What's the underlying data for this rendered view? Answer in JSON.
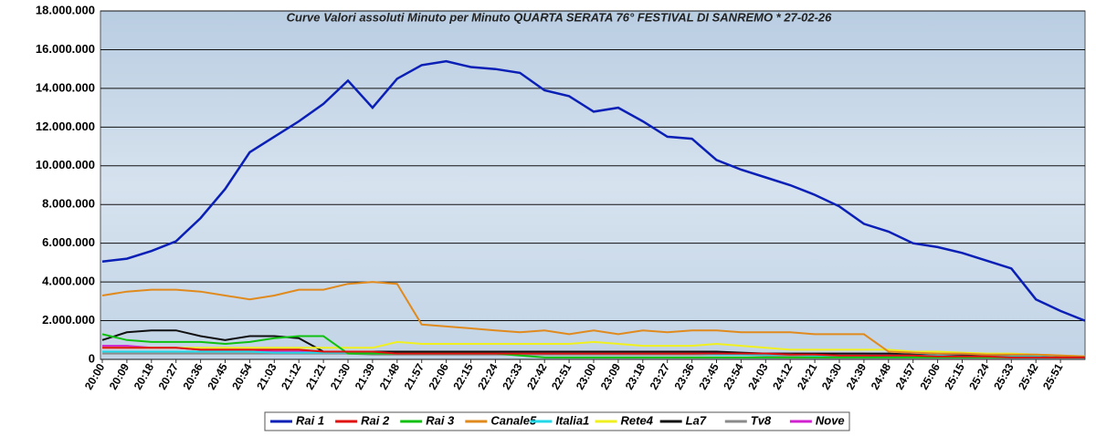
{
  "chart_data": {
    "type": "line",
    "title": "Curve Valori assoluti Minuto per Minuto QUARTA SERATA 76° FESTIVAL DI SANREMO *  27-02-26",
    "categories": [
      "20:00",
      "20:09",
      "20:18",
      "20:27",
      "20:36",
      "20:45",
      "20:54",
      "21:03",
      "21:12",
      "21:21",
      "21:30",
      "21:39",
      "21:48",
      "21:57",
      "22:06",
      "22:15",
      "22:24",
      "22:33",
      "22:42",
      "22:51",
      "23:00",
      "23:09",
      "23:18",
      "23:27",
      "23:36",
      "23:45",
      "23:54",
      "24:03",
      "24:12",
      "24:21",
      "24:30",
      "24:39",
      "24:48",
      "24:57",
      "25:06",
      "25:15",
      "25:24",
      "25:33",
      "25:42",
      "25:51",
      null
    ],
    "ylim": [
      0,
      18000000
    ],
    "yticks": [
      0,
      {
        "value": 2000000,
        "label": "2.000.000"
      },
      {
        "value": 4000000,
        "label": "4.000.000"
      },
      {
        "value": 6000000,
        "label": "6.000.000"
      },
      {
        "value": 8000000,
        "label": "8.000.000"
      },
      {
        "value": 10000000,
        "label": "10.000.000"
      },
      {
        "value": 12000000,
        "label": "12.000.000"
      },
      {
        "value": 14000000,
        "label": "14.000.000"
      },
      {
        "value": 16000000,
        "label": "16.000.000"
      },
      {
        "value": 18000000,
        "label": "18.000.000"
      }
    ],
    "grid": true,
    "legend": "bottom",
    "series": [
      {
        "name": "Rai 1",
        "color": "#0a1fb5",
        "values": [
          5050000,
          5200000,
          5600000,
          6100000,
          7300000,
          8800000,
          10700000,
          11500000,
          12300000,
          13200000,
          14400000,
          13000000,
          14500000,
          15200000,
          15400000,
          15100000,
          15000000,
          14800000,
          13900000,
          13600000,
          12800000,
          13000000,
          12300000,
          11500000,
          11400000,
          10300000,
          9800000,
          9400000,
          9000000,
          8500000,
          7900000,
          7000000,
          6600000,
          6000000,
          5800000,
          5500000,
          5100000,
          4700000,
          3100000,
          2500000,
          2000000
        ]
      },
      {
        "name": "Rai 2",
        "color": "#e01010",
        "values": [
          600000,
          600000,
          600000,
          600000,
          500000,
          500000,
          500000,
          500000,
          500000,
          400000,
          400000,
          400000,
          300000,
          300000,
          300000,
          300000,
          300000,
          300000,
          300000,
          300000,
          300000,
          300000,
          300000,
          300000,
          300000,
          300000,
          300000,
          300000,
          250000,
          250000,
          200000,
          200000,
          200000,
          200000,
          150000,
          150000,
          150000,
          100000,
          100000,
          100000,
          100000
        ]
      },
      {
        "name": "Rai 3",
        "color": "#10c010",
        "values": [
          1300000,
          1000000,
          900000,
          900000,
          900000,
          800000,
          900000,
          1100000,
          1200000,
          1200000,
          300000,
          300000,
          300000,
          300000,
          300000,
          300000,
          300000,
          200000,
          100000,
          100000,
          100000,
          100000,
          100000,
          100000,
          100000,
          100000,
          100000,
          100000,
          100000,
          100000,
          100000,
          100000,
          100000,
          100000,
          100000,
          100000,
          100000,
          100000,
          100000,
          100000,
          100000
        ]
      },
      {
        "name": "Canale5",
        "color": "#e08a1e",
        "values": [
          3300000,
          3500000,
          3600000,
          3600000,
          3500000,
          3300000,
          3100000,
          3300000,
          3600000,
          3600000,
          3900000,
          4000000,
          3900000,
          1800000,
          1700000,
          1600000,
          1500000,
          1400000,
          1500000,
          1300000,
          1500000,
          1300000,
          1500000,
          1400000,
          1500000,
          1500000,
          1400000,
          1400000,
          1400000,
          1300000,
          1300000,
          1300000,
          400000,
          350000,
          300000,
          300000,
          250000,
          250000,
          250000,
          200000,
          150000
        ]
      },
      {
        "name": "Italia1",
        "color": "#20d8e8",
        "values": [
          400000,
          400000,
          400000,
          400000,
          400000,
          400000,
          400000,
          350000,
          350000,
          350000,
          350000,
          350000,
          300000,
          300000,
          300000,
          300000,
          300000,
          300000,
          300000,
          300000,
          300000,
          300000,
          300000,
          300000,
          300000,
          250000,
          250000,
          250000,
          250000,
          200000,
          200000,
          200000,
          200000,
          200000,
          200000,
          150000,
          150000,
          150000,
          150000,
          100000,
          100000
        ]
      },
      {
        "name": "Rete4",
        "color": "#f0f020",
        "values": [
          600000,
          600000,
          600000,
          600000,
          600000,
          600000,
          600000,
          600000,
          600000,
          600000,
          600000,
          600000,
          900000,
          800000,
          800000,
          800000,
          800000,
          800000,
          800000,
          800000,
          900000,
          800000,
          700000,
          700000,
          700000,
          800000,
          700000,
          600000,
          500000,
          500000,
          500000,
          500000,
          500000,
          400000,
          400000,
          350000,
          300000,
          300000,
          250000,
          200000,
          150000
        ]
      },
      {
        "name": "La7",
        "color": "#101010",
        "values": [
          1000000,
          1400000,
          1500000,
          1500000,
          1200000,
          1000000,
          1200000,
          1200000,
          1100000,
          400000,
          400000,
          400000,
          400000,
          400000,
          400000,
          400000,
          400000,
          400000,
          400000,
          400000,
          400000,
          400000,
          400000,
          400000,
          400000,
          400000,
          350000,
          300000,
          300000,
          300000,
          300000,
          300000,
          300000,
          250000,
          200000,
          200000,
          200000,
          150000,
          150000,
          100000,
          100000
        ]
      },
      {
        "name": "Tv8",
        "color": "#8a8a8a",
        "values": [
          300000,
          300000,
          300000,
          300000,
          300000,
          300000,
          300000,
          300000,
          300000,
          300000,
          300000,
          250000,
          250000,
          250000,
          250000,
          250000,
          250000,
          250000,
          250000,
          250000,
          250000,
          250000,
          250000,
          250000,
          250000,
          250000,
          250000,
          200000,
          200000,
          200000,
          200000,
          200000,
          150000,
          150000,
          150000,
          150000,
          150000,
          100000,
          100000,
          100000,
          100000
        ]
      },
      {
        "name": "Nove",
        "color": "#d020d0",
        "values": [
          700000,
          700000,
          600000,
          600000,
          500000,
          500000,
          500000,
          400000,
          400000,
          400000,
          400000,
          350000,
          350000,
          350000,
          350000,
          350000,
          350000,
          350000,
          350000,
          350000,
          350000,
          350000,
          350000,
          350000,
          350000,
          350000,
          300000,
          300000,
          300000,
          300000,
          300000,
          300000,
          250000,
          250000,
          200000,
          200000,
          200000,
          150000,
          150000,
          150000,
          150000
        ]
      }
    ]
  }
}
